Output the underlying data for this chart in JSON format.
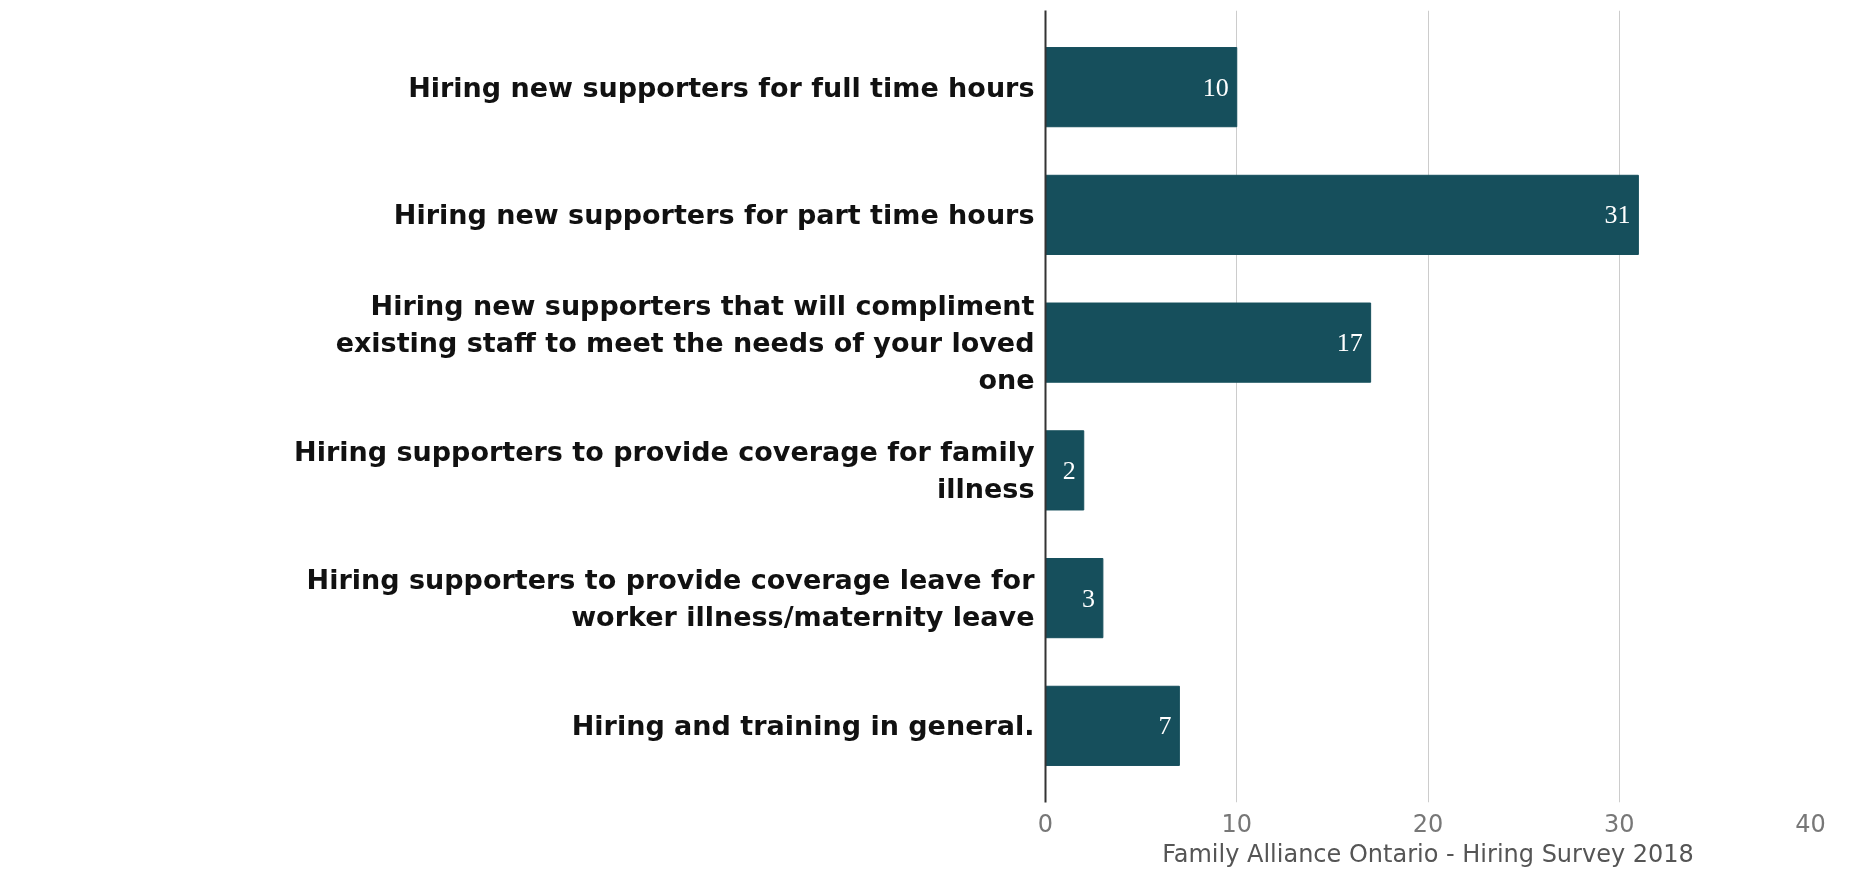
{
  "chart_data": {
    "type": "bar",
    "orientation": "horizontal",
    "categories": [
      "Hiring new supporters for full time hours",
      "Hiring new supporters for part time hours",
      "Hiring new supporters that will compliment existing staff to meet the needs of your loved one",
      "Hiring supporters to provide coverage for family illness",
      "Hiring supporters to provide coverage leave for worker illness/maternity leave",
      "Hiring and training in general."
    ],
    "values": [
      10,
      31,
      17,
      2,
      3,
      7
    ],
    "color": "#164f5c",
    "xlim": [
      0,
      40
    ],
    "xticks": [
      0,
      10,
      20,
      30,
      40
    ],
    "grid": "x",
    "data_labels": true,
    "xlabel": "Family Alliance Ontario - Hiring Survey 2018"
  }
}
